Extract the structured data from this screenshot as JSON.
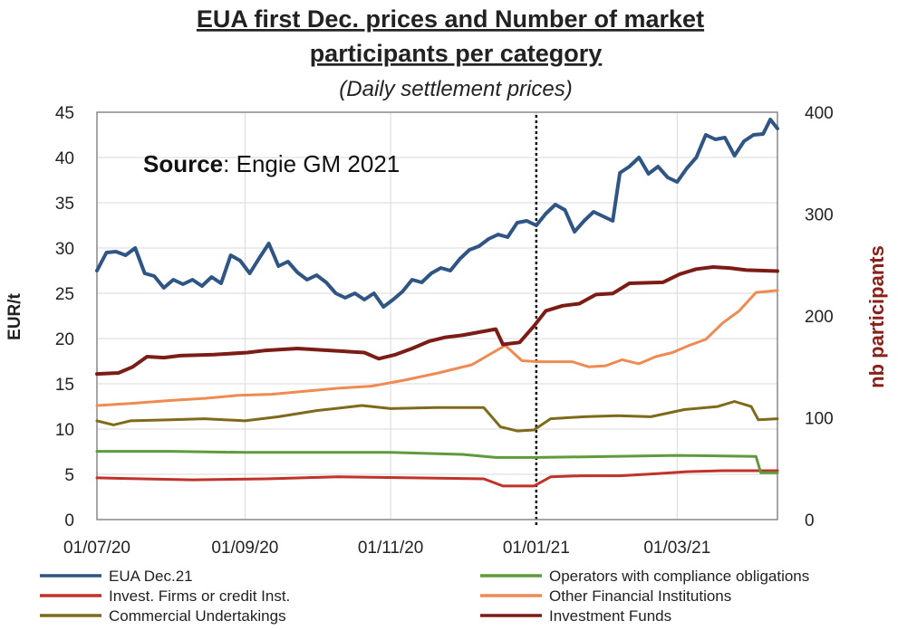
{
  "chart_data": {
    "type": "line",
    "title_line1": "EUA first Dec. prices and Number of market",
    "title_line2": "participants per category",
    "subtitle": "(Daily settlement prices)",
    "source_bold": "Source",
    "source_rest": ": Engie GM 2021",
    "ylabel_left": "EUR/t",
    "ylabel_right": "nb participants",
    "ylim_left": [
      0,
      45
    ],
    "ylim_right": [
      0,
      400
    ],
    "yticks_left": [
      "0",
      "5",
      "10",
      "15",
      "20",
      "25",
      "30",
      "35",
      "40",
      "45"
    ],
    "yticks_right": [
      "0",
      "100",
      "200",
      "300",
      "400"
    ],
    "xlim": [
      "2020-07-01",
      "2021-04-12"
    ],
    "xticks": [
      {
        "date": "2020-07-01",
        "label": "01/07/20"
      },
      {
        "date": "2020-09-01",
        "label": "01/09/20"
      },
      {
        "date": "2020-11-01",
        "label": "01/11/20"
      },
      {
        "date": "2021-01-01",
        "label": "01/01/21"
      },
      {
        "date": "2021-03-01",
        "label": "01/03/21"
      }
    ],
    "vline_date": "2021-01-01",
    "grid": true,
    "legend_position": "bottom",
    "series": [
      {
        "name": "EUA Dec.21",
        "axis": "left",
        "color": "#2f5584",
        "width": 4,
        "points": [
          [
            "2020-07-01",
            27.5
          ],
          [
            "2020-07-05",
            29.5
          ],
          [
            "2020-07-09",
            29.6
          ],
          [
            "2020-07-13",
            29.2
          ],
          [
            "2020-07-17",
            30.0
          ],
          [
            "2020-07-21",
            27.2
          ],
          [
            "2020-07-25",
            26.9
          ],
          [
            "2020-07-29",
            25.6
          ],
          [
            "2020-08-02",
            26.5
          ],
          [
            "2020-08-06",
            26.0
          ],
          [
            "2020-08-10",
            26.5
          ],
          [
            "2020-08-14",
            25.8
          ],
          [
            "2020-08-18",
            26.8
          ],
          [
            "2020-08-22",
            26.1
          ],
          [
            "2020-08-26",
            29.2
          ],
          [
            "2020-08-30",
            28.6
          ],
          [
            "2020-09-03",
            27.2
          ],
          [
            "2020-09-07",
            28.9
          ],
          [
            "2020-09-11",
            30.5
          ],
          [
            "2020-09-15",
            28.0
          ],
          [
            "2020-09-19",
            28.5
          ],
          [
            "2020-09-23",
            27.3
          ],
          [
            "2020-09-27",
            26.5
          ],
          [
            "2020-10-01",
            27.0
          ],
          [
            "2020-10-05",
            26.2
          ],
          [
            "2020-10-09",
            25.0
          ],
          [
            "2020-10-13",
            24.5
          ],
          [
            "2020-10-17",
            25.0
          ],
          [
            "2020-10-21",
            24.3
          ],
          [
            "2020-10-25",
            25.0
          ],
          [
            "2020-10-29",
            23.5
          ],
          [
            "2020-11-02",
            24.3
          ],
          [
            "2020-11-06",
            25.2
          ],
          [
            "2020-11-10",
            26.5
          ],
          [
            "2020-11-14",
            26.2
          ],
          [
            "2020-11-18",
            27.2
          ],
          [
            "2020-11-22",
            27.8
          ],
          [
            "2020-11-26",
            27.5
          ],
          [
            "2020-11-30",
            28.8
          ],
          [
            "2020-12-04",
            29.8
          ],
          [
            "2020-12-08",
            30.2
          ],
          [
            "2020-12-12",
            31.0
          ],
          [
            "2020-12-16",
            31.5
          ],
          [
            "2020-12-20",
            31.2
          ],
          [
            "2020-12-24",
            32.8
          ],
          [
            "2020-12-28",
            33.0
          ],
          [
            "2021-01-01",
            32.5
          ],
          [
            "2021-01-05",
            33.8
          ],
          [
            "2021-01-09",
            34.8
          ],
          [
            "2021-01-13",
            34.2
          ],
          [
            "2021-01-17",
            31.8
          ],
          [
            "2021-01-21",
            33.0
          ],
          [
            "2021-01-25",
            34.0
          ],
          [
            "2021-01-29",
            33.5
          ],
          [
            "2021-02-02",
            33.0
          ],
          [
            "2021-02-05",
            38.3
          ],
          [
            "2021-02-09",
            39.0
          ],
          [
            "2021-02-13",
            40.0
          ],
          [
            "2021-02-17",
            38.2
          ],
          [
            "2021-02-21",
            39.0
          ],
          [
            "2021-02-25",
            37.8
          ],
          [
            "2021-03-01",
            37.3
          ],
          [
            "2021-03-05",
            38.8
          ],
          [
            "2021-03-09",
            40.0
          ],
          [
            "2021-03-13",
            42.5
          ],
          [
            "2021-03-17",
            42.0
          ],
          [
            "2021-03-21",
            42.2
          ],
          [
            "2021-03-25",
            40.2
          ],
          [
            "2021-03-29",
            41.8
          ],
          [
            "2021-04-02",
            42.5
          ],
          [
            "2021-04-06",
            42.6
          ],
          [
            "2021-04-09",
            44.2
          ],
          [
            "2021-04-12",
            43.2
          ]
        ]
      },
      {
        "name": "Investment Funds",
        "axis": "right",
        "color": "#7b1c16",
        "width": 4,
        "points": [
          [
            "2020-07-01",
            143
          ],
          [
            "2020-07-10",
            144
          ],
          [
            "2020-07-16",
            150
          ],
          [
            "2020-07-22",
            160
          ],
          [
            "2020-07-29",
            159
          ],
          [
            "2020-08-05",
            161
          ],
          [
            "2020-08-19",
            162
          ],
          [
            "2020-09-02",
            164
          ],
          [
            "2020-09-09",
            166
          ],
          [
            "2020-09-23",
            168
          ],
          [
            "2020-10-07",
            166
          ],
          [
            "2020-10-21",
            164
          ],
          [
            "2020-10-27",
            158
          ],
          [
            "2020-11-03",
            162
          ],
          [
            "2020-11-10",
            168
          ],
          [
            "2020-11-17",
            175
          ],
          [
            "2020-11-24",
            179
          ],
          [
            "2020-12-01",
            181
          ],
          [
            "2020-12-08",
            184
          ],
          [
            "2020-12-15",
            187
          ],
          [
            "2020-12-18",
            172
          ],
          [
            "2020-12-25",
            174
          ],
          [
            "2020-12-31",
            190
          ],
          [
            "2021-01-05",
            205
          ],
          [
            "2021-01-12",
            210
          ],
          [
            "2021-01-19",
            212
          ],
          [
            "2021-01-26",
            221
          ],
          [
            "2021-02-02",
            222
          ],
          [
            "2021-02-09",
            232
          ],
          [
            "2021-02-23",
            233
          ],
          [
            "2021-03-02",
            241
          ],
          [
            "2021-03-09",
            246
          ],
          [
            "2021-03-16",
            248
          ],
          [
            "2021-03-23",
            247
          ],
          [
            "2021-03-30",
            245
          ],
          [
            "2021-04-12",
            244
          ]
        ]
      },
      {
        "name": "Other Financial Institutions",
        "axis": "right",
        "color": "#ee8a52",
        "width": 3,
        "points": [
          [
            "2020-07-01",
            112
          ],
          [
            "2020-07-15",
            114
          ],
          [
            "2020-08-01",
            117
          ],
          [
            "2020-08-15",
            119
          ],
          [
            "2020-08-29",
            122
          ],
          [
            "2020-09-12",
            123
          ],
          [
            "2020-09-26",
            126
          ],
          [
            "2020-10-10",
            129
          ],
          [
            "2020-10-24",
            131
          ],
          [
            "2020-11-07",
            137
          ],
          [
            "2020-11-21",
            144
          ],
          [
            "2020-12-05",
            152
          ],
          [
            "2020-12-19",
            171
          ],
          [
            "2020-12-26",
            156
          ],
          [
            "2021-01-02",
            155
          ],
          [
            "2021-01-16",
            155
          ],
          [
            "2021-01-23",
            150
          ],
          [
            "2021-01-30",
            151
          ],
          [
            "2021-02-06",
            157
          ],
          [
            "2021-02-13",
            153
          ],
          [
            "2021-02-20",
            160
          ],
          [
            "2021-02-27",
            164
          ],
          [
            "2021-03-06",
            171
          ],
          [
            "2021-03-13",
            177
          ],
          [
            "2021-03-20",
            193
          ],
          [
            "2021-03-27",
            205
          ],
          [
            "2021-04-03",
            223
          ],
          [
            "2021-04-12",
            225
          ]
        ]
      },
      {
        "name": "Commercial Undertakings",
        "axis": "right",
        "color": "#7e6a1a",
        "width": 3,
        "points": [
          [
            "2020-07-01",
            97
          ],
          [
            "2020-07-08",
            93
          ],
          [
            "2020-07-15",
            97
          ],
          [
            "2020-08-01",
            98
          ],
          [
            "2020-08-15",
            99
          ],
          [
            "2020-09-01",
            97
          ],
          [
            "2020-09-15",
            101
          ],
          [
            "2020-10-01",
            107
          ],
          [
            "2020-10-20",
            112
          ],
          [
            "2020-11-01",
            109
          ],
          [
            "2020-11-20",
            110
          ],
          [
            "2020-12-10",
            110
          ],
          [
            "2020-12-17",
            91
          ],
          [
            "2020-12-24",
            87
          ],
          [
            "2020-12-31",
            88
          ],
          [
            "2021-01-07",
            99
          ],
          [
            "2021-01-21",
            101
          ],
          [
            "2021-02-04",
            102
          ],
          [
            "2021-02-18",
            101
          ],
          [
            "2021-03-04",
            108
          ],
          [
            "2021-03-18",
            111
          ],
          [
            "2021-03-25",
            116
          ],
          [
            "2021-04-01",
            111
          ],
          [
            "2021-04-04",
            98
          ],
          [
            "2021-04-12",
            99
          ]
        ]
      },
      {
        "name": "Operators with compliance obligations",
        "axis": "right",
        "color": "#5f9a3c",
        "width": 3,
        "points": [
          [
            "2020-07-01",
            67
          ],
          [
            "2020-08-01",
            67
          ],
          [
            "2020-09-01",
            66
          ],
          [
            "2020-10-01",
            66
          ],
          [
            "2020-11-01",
            66
          ],
          [
            "2020-12-01",
            64
          ],
          [
            "2020-12-15",
            61
          ],
          [
            "2021-01-01",
            61
          ],
          [
            "2021-02-01",
            62
          ],
          [
            "2021-03-01",
            63
          ],
          [
            "2021-04-03",
            62
          ],
          [
            "2021-04-05",
            46
          ],
          [
            "2021-04-12",
            46
          ]
        ]
      },
      {
        "name": "Invest. Firms or credit Inst.",
        "axis": "right",
        "color": "#c0322a",
        "width": 3,
        "points": [
          [
            "2020-07-01",
            41
          ],
          [
            "2020-07-20",
            40
          ],
          [
            "2020-08-10",
            39
          ],
          [
            "2020-09-10",
            40
          ],
          [
            "2020-10-10",
            42
          ],
          [
            "2020-11-10",
            41
          ],
          [
            "2020-12-10",
            40
          ],
          [
            "2020-12-18",
            33
          ],
          [
            "2020-12-31",
            33
          ],
          [
            "2021-01-07",
            42
          ],
          [
            "2021-01-20",
            43
          ],
          [
            "2021-02-05",
            43
          ],
          [
            "2021-02-20",
            45
          ],
          [
            "2021-03-05",
            47
          ],
          [
            "2021-03-20",
            48
          ],
          [
            "2021-04-12",
            48
          ]
        ]
      }
    ],
    "legend": [
      {
        "name": "EUA Dec.21",
        "color": "#2f5584",
        "col": 0,
        "row": 0
      },
      {
        "name": "Invest. Firms or credit Inst.",
        "color": "#c0322a",
        "col": 0,
        "row": 1
      },
      {
        "name": "Commercial Undertakings",
        "color": "#7e6a1a",
        "col": 0,
        "row": 2
      },
      {
        "name": "Operators with compliance obligations",
        "color": "#5f9a3c",
        "col": 1,
        "row": 0
      },
      {
        "name": "Other Financial Institutions",
        "color": "#ee8a52",
        "col": 1,
        "row": 1
      },
      {
        "name": "Investment Funds",
        "color": "#7b1c16",
        "col": 1,
        "row": 2
      }
    ]
  }
}
